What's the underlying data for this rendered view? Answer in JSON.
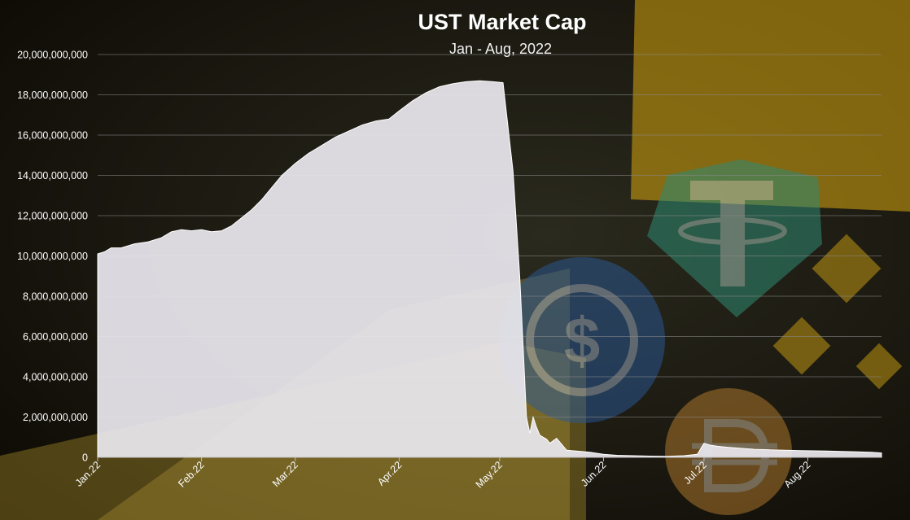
{
  "colors": {
    "background": "#1a1408",
    "accent_yellow": "#e2b012",
    "area_fill": "#e6e4ea",
    "tether_green": "#2f8a73",
    "usdc_blue": "#2a5a9a",
    "dai_orange": "#c98a32"
  },
  "background_icons": [
    "tether-logo-icon",
    "usdc-logo-icon",
    "binance-logo-icon",
    "dai-logo-icon"
  ],
  "chart_data": {
    "type": "area",
    "title": "UST Market Cap",
    "subtitle": "Jan - Aug, 2022",
    "xlabel": "",
    "ylabel": "",
    "ylim": [
      0,
      20000000000
    ],
    "yticks": [
      0,
      2000000000,
      4000000000,
      6000000000,
      8000000000,
      10000000000,
      12000000000,
      14000000000,
      16000000000,
      18000000000,
      20000000000
    ],
    "ytick_labels": [
      "0",
      "2,000,000,000",
      "4,000,000,000",
      "6,000,000,000",
      "8,000,000,000",
      "10,000,000,000",
      "12,000,000,000",
      "14,000,000,000",
      "16,000,000,000",
      "18,000,000,000",
      "20,000,000,000"
    ],
    "xlim": [
      "2022-01-01",
      "2022-08-23"
    ],
    "xticks": [
      "2022-01-01",
      "2022-02-01",
      "2022-03-01",
      "2022-04-01",
      "2022-05-01",
      "2022-06-01",
      "2022-07-01",
      "2022-08-01"
    ],
    "xtick_labels": [
      "Jan.22",
      "Feb.22",
      "Mar.22",
      "Apr.22",
      "May.22",
      "Jun.22",
      "Jul.22",
      "Aug.22"
    ],
    "grid": true,
    "legend": "none",
    "series": [
      {
        "x": [
          "2022-01-01",
          "2022-01-03",
          "2022-01-05",
          "2022-01-08",
          "2022-01-12",
          "2022-01-16",
          "2022-01-20",
          "2022-01-23",
          "2022-01-26",
          "2022-01-29",
          "2022-02-01",
          "2022-02-04",
          "2022-02-07",
          "2022-02-10",
          "2022-02-13",
          "2022-02-16",
          "2022-02-19",
          "2022-02-22",
          "2022-02-25",
          "2022-03-01",
          "2022-03-05",
          "2022-03-09",
          "2022-03-13",
          "2022-03-17",
          "2022-03-21",
          "2022-03-25",
          "2022-03-29",
          "2022-04-01",
          "2022-04-05",
          "2022-04-09",
          "2022-04-13",
          "2022-04-17",
          "2022-04-21",
          "2022-04-25",
          "2022-04-29",
          "2022-05-02",
          "2022-05-05",
          "2022-05-07",
          "2022-05-08",
          "2022-05-09",
          "2022-05-10",
          "2022-05-11",
          "2022-05-12",
          "2022-05-13",
          "2022-05-14",
          "2022-05-15",
          "2022-05-16",
          "2022-05-18",
          "2022-05-21",
          "2022-05-25",
          "2022-05-28",
          "2022-05-30",
          "2022-06-01",
          "2022-06-05",
          "2022-06-10",
          "2022-06-15",
          "2022-06-20",
          "2022-06-25",
          "2022-06-29",
          "2022-07-01",
          "2022-07-03",
          "2022-07-05",
          "2022-07-08",
          "2022-07-12",
          "2022-07-16",
          "2022-07-20",
          "2022-07-25",
          "2022-07-30",
          "2022-08-05",
          "2022-08-10",
          "2022-08-15",
          "2022-08-20",
          "2022-08-23"
        ],
        "values": [
          10100000000,
          10200000000,
          10400000000,
          10400000000,
          10600000000,
          10700000000,
          10900000000,
          11200000000,
          11300000000,
          11250000000,
          11300000000,
          11200000000,
          11250000000,
          11500000000,
          11900000000,
          12300000000,
          12800000000,
          13400000000,
          14000000000,
          14600000000,
          15100000000,
          15500000000,
          15900000000,
          16200000000,
          16500000000,
          16700000000,
          16800000000,
          17200000000,
          17700000000,
          18100000000,
          18400000000,
          18550000000,
          18650000000,
          18700000000,
          18650000000,
          18600000000,
          14200000000,
          9000000000,
          5500000000,
          2000000000,
          1200000000,
          2000000000,
          1500000000,
          1100000000,
          1000000000,
          900000000,
          700000000,
          950000000,
          350000000,
          300000000,
          250000000,
          200000000,
          150000000,
          100000000,
          80000000,
          60000000,
          50000000,
          80000000,
          150000000,
          700000000,
          600000000,
          550000000,
          500000000,
          450000000,
          400000000,
          380000000,
          350000000,
          330000000,
          320000000,
          300000000,
          280000000,
          250000000,
          220000000
        ]
      }
    ]
  }
}
